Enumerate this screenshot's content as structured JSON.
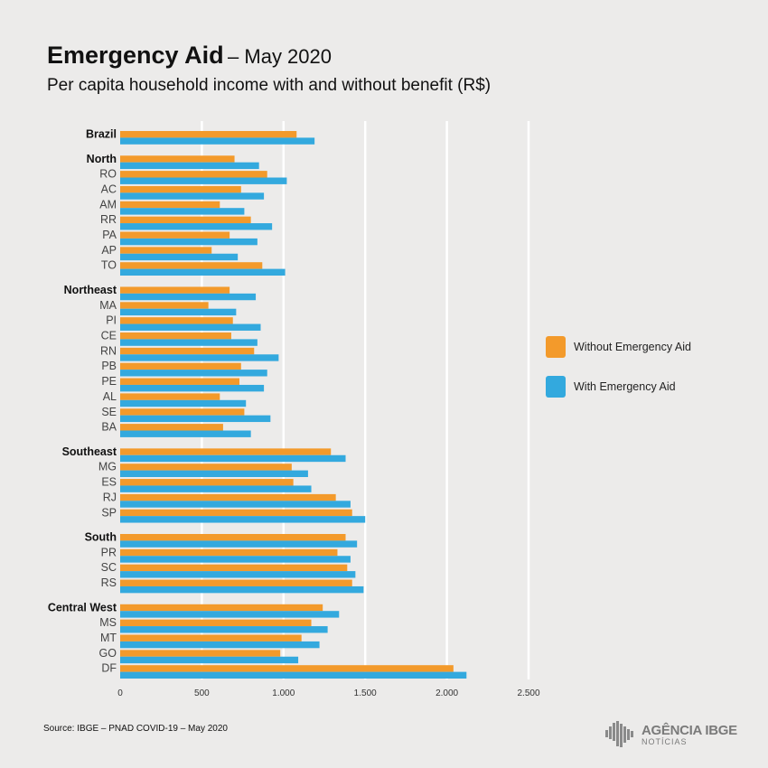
{
  "header": {
    "title": "Emergency Aid",
    "title_suffix": "– May 2020",
    "subtitle": "Per capita household income with and without benefit (R$)"
  },
  "legend": {
    "without_label": "Without Emergency Aid",
    "with_label": "With Emergency Aid"
  },
  "colors": {
    "without": "#f39a2b",
    "with": "#33a9de",
    "grid": "#ffffff",
    "background": "#ecebea"
  },
  "footer": {
    "source": "Source: IBGE – PNAD COVID-19 – May 2020",
    "logo_top": "AGÊNCIA IBGE",
    "logo_bottom": "NOTÍCIAS"
  },
  "chart_data": {
    "type": "bar",
    "orientation": "horizontal",
    "grid": true,
    "legend_position": "right",
    "xlim": [
      0,
      2500
    ],
    "xticks": [
      {
        "value": 0,
        "label": "0"
      },
      {
        "value": 500,
        "label": "500"
      },
      {
        "value": 1000,
        "label": "1.000"
      },
      {
        "value": 1500,
        "label": "1.500"
      },
      {
        "value": 2000,
        "label": "2.000"
      },
      {
        "value": 2500,
        "label": "2.500"
      }
    ],
    "series": [
      {
        "name": "Without Emergency Aid",
        "color": "#f39a2b"
      },
      {
        "name": "With Emergency Aid",
        "color": "#33a9de"
      }
    ],
    "groups": [
      {
        "rows": [
          {
            "label": "Brazil",
            "bold": true,
            "without": 1080,
            "with": 1190
          }
        ]
      },
      {
        "rows": [
          {
            "label": "North",
            "bold": true,
            "without": 700,
            "with": 850
          },
          {
            "label": "RO",
            "without": 900,
            "with": 1020
          },
          {
            "label": "AC",
            "without": 740,
            "with": 880
          },
          {
            "label": "AM",
            "without": 610,
            "with": 760
          },
          {
            "label": "RR",
            "without": 800,
            "with": 930
          },
          {
            "label": "PA",
            "without": 670,
            "with": 840
          },
          {
            "label": "AP",
            "without": 560,
            "with": 720
          },
          {
            "label": "TO",
            "without": 870,
            "with": 1010
          }
        ]
      },
      {
        "rows": [
          {
            "label": "Northeast",
            "bold": true,
            "without": 670,
            "with": 830
          },
          {
            "label": "MA",
            "without": 540,
            "with": 710
          },
          {
            "label": "PI",
            "without": 690,
            "with": 860
          },
          {
            "label": "CE",
            "without": 680,
            "with": 840
          },
          {
            "label": "RN",
            "without": 820,
            "with": 970
          },
          {
            "label": "PB",
            "without": 740,
            "with": 900
          },
          {
            "label": "PE",
            "without": 730,
            "with": 880
          },
          {
            "label": "AL",
            "without": 610,
            "with": 770
          },
          {
            "label": "SE",
            "without": 760,
            "with": 920
          },
          {
            "label": "BA",
            "without": 630,
            "with": 800
          }
        ]
      },
      {
        "rows": [
          {
            "label": "Southeast",
            "bold": true,
            "without": 1290,
            "with": 1380
          },
          {
            "label": "MG",
            "without": 1050,
            "with": 1150
          },
          {
            "label": "ES",
            "without": 1060,
            "with": 1170
          },
          {
            "label": "RJ",
            "without": 1320,
            "with": 1410
          },
          {
            "label": "SP",
            "without": 1420,
            "with": 1500
          }
        ]
      },
      {
        "rows": [
          {
            "label": "South",
            "bold": true,
            "without": 1380,
            "with": 1450
          },
          {
            "label": "PR",
            "without": 1330,
            "with": 1410
          },
          {
            "label": "SC",
            "without": 1390,
            "with": 1440
          },
          {
            "label": "RS",
            "without": 1420,
            "with": 1490
          }
        ]
      },
      {
        "rows": [
          {
            "label": "Central West",
            "bold": true,
            "without": 1240,
            "with": 1340
          },
          {
            "label": "MS",
            "without": 1170,
            "with": 1270
          },
          {
            "label": "MT",
            "without": 1110,
            "with": 1220
          },
          {
            "label": "GO",
            "without": 980,
            "with": 1090
          },
          {
            "label": "DF",
            "without": 2040,
            "with": 2120
          }
        ]
      }
    ]
  }
}
